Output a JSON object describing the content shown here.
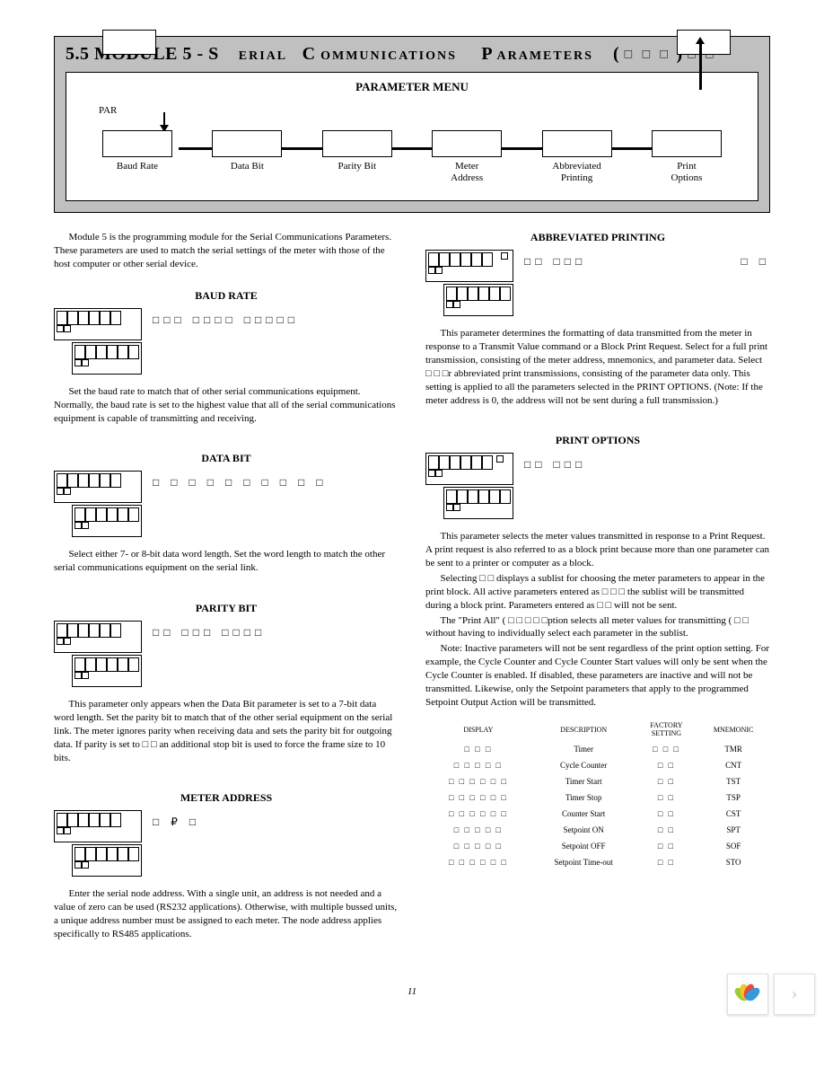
{
  "header": {
    "section_num": "5.5",
    "module": "MODULE 5 - S",
    "erial": "ERIAL",
    "c": "C",
    "omm": "OMMUNICATIONS",
    "p": "P",
    "arams": "ARAMETERS",
    "paren_open": "(",
    "paren_boxes": "□ □ □",
    "paren_close": ")",
    "trail_boxes": "□ □"
  },
  "menu": {
    "title": "PARAMETER MENU",
    "par": "PAR",
    "labels": [
      "Baud Rate",
      "Data Bit",
      "Parity Bit",
      "Meter\nAddress",
      "Abbreviated\nPrinting",
      "Print\nOptions"
    ]
  },
  "intro": "Module 5 is the programming module for the Serial Communications Parameters. These parameters are used to match the serial settings of the meter with those of the host computer or other serial device.",
  "baud": {
    "title": "BAUD RATE",
    "options": "□□□    □□□□    □□□□□",
    "options2": "",
    "body": "Set the baud rate to match that of other serial communications equipment. Normally, the baud rate is set to the highest value that all of the serial communications equipment is capable of transmitting and receiving."
  },
  "databit": {
    "title": "DATA BIT",
    "options": "□ □ □ □ □ □ □ □ □ □",
    "body": "Select either 7- or 8-bit data word length. Set the word length to match the other serial communications equipment on the serial link."
  },
  "parity": {
    "title": "PARITY BIT",
    "options": "□□    □□□    □□□□",
    "body": "This parameter only appears when the Data Bit parameter is set to a 7-bit data word length. Set the parity bit to match that of the other serial equipment on the serial link. The meter ignores parity when receiving data and sets the parity bit for outgoing data. If parity is set to          □ □ an additional stop bit is used to force the frame size to 10 bits."
  },
  "meter": {
    "title": "METER ADDRESS",
    "options": "□ ₽ □",
    "body": "Enter the serial node address. With a single unit, an address is not needed and a value of zero can be used (RS232 applications). Otherwise, with multiple bussed units, a unique address number must be assigned to each meter. The node address applies specifically to RS485 applications."
  },
  "abbrev": {
    "title": "ABBREVIATED PRINTING",
    "options": "□□    □□□",
    "side_boxes": "□ □",
    "body": "This parameter determines the formatting of data transmitted from the meter in response to a Transmit Value command or a Block Print Request. Select     for a full print transmission, consisting of the meter address, mnemonics, and parameter data. Select     □ □ □r abbreviated print transmissions, consisting of the parameter data only. This setting is applied to all the parameters selected in the PRINT OPTIONS. (Note: If the meter address is 0, the address will not be sent during a full transmission.)"
  },
  "print": {
    "title": "PRINT OPTIONS",
    "options": "□□    □□□",
    "body1": "This parameter selects the meter values transmitted in response to a Print Request. A print request is also referred to as a block print because more than one parameter can be sent to a printer or computer as a block.",
    "body2": "Selecting     □ □ displays a sublist for choosing the meter parameters to appear in the print block. All active parameters entered as          □ □ □ the sublist will be transmitted during a block print. Parameters entered as               □ □ will not be sent.",
    "body3": "The \"Print All\" (     □ □ □ □ □ption selects all meter values for transmitting ( □ □ without having to individually select each parameter in the sublist.",
    "body4": "Note: Inactive parameters will not be sent regardless of the print option setting. For example, the Cycle Counter and Cycle Counter Start values will only be sent when the Cycle Counter is enabled. If disabled, these parameters are inactive and will not be transmitted. Likewise, only the Setpoint parameters that apply to the programmed Setpoint Output Action will be transmitted."
  },
  "table": {
    "headers": [
      "DISPLAY",
      "DESCRIPTION",
      "FACTORY SETTING",
      "MNEMONIC"
    ],
    "rows": [
      {
        "display": "□ □ □",
        "desc": "Timer",
        "factory": "□ □ □",
        "mnemonic": "TMR"
      },
      {
        "display": "□ □ □ □ □",
        "desc": "Cycle Counter",
        "factory": "□ □",
        "mnemonic": "CNT"
      },
      {
        "display": "□ □ □ □ □ □",
        "desc": "Timer Start",
        "factory": "□ □",
        "mnemonic": "TST"
      },
      {
        "display": "□ □ □ □ □ □",
        "desc": "Timer Stop",
        "factory": "□ □",
        "mnemonic": "TSP"
      },
      {
        "display": "□ □ □ □ □ □",
        "desc": "Counter Start",
        "factory": "□ □",
        "mnemonic": "CST"
      },
      {
        "display": "□ □ □ □ □",
        "desc": "Setpoint ON",
        "factory": "□ □",
        "mnemonic": "SPT"
      },
      {
        "display": "□ □ □ □ □",
        "desc": "Setpoint OFF",
        "factory": "□ □",
        "mnemonic": "SOF"
      },
      {
        "display": "□ □ □ □ □ □",
        "desc": "Setpoint Time-out",
        "factory": "□ □",
        "mnemonic": "STO"
      }
    ]
  },
  "page_number": "11",
  "widget": {
    "petal_colors": [
      "#9acd32",
      "#f4c430",
      "#e74c3c",
      "#3498db"
    ],
    "chevron": "›"
  }
}
